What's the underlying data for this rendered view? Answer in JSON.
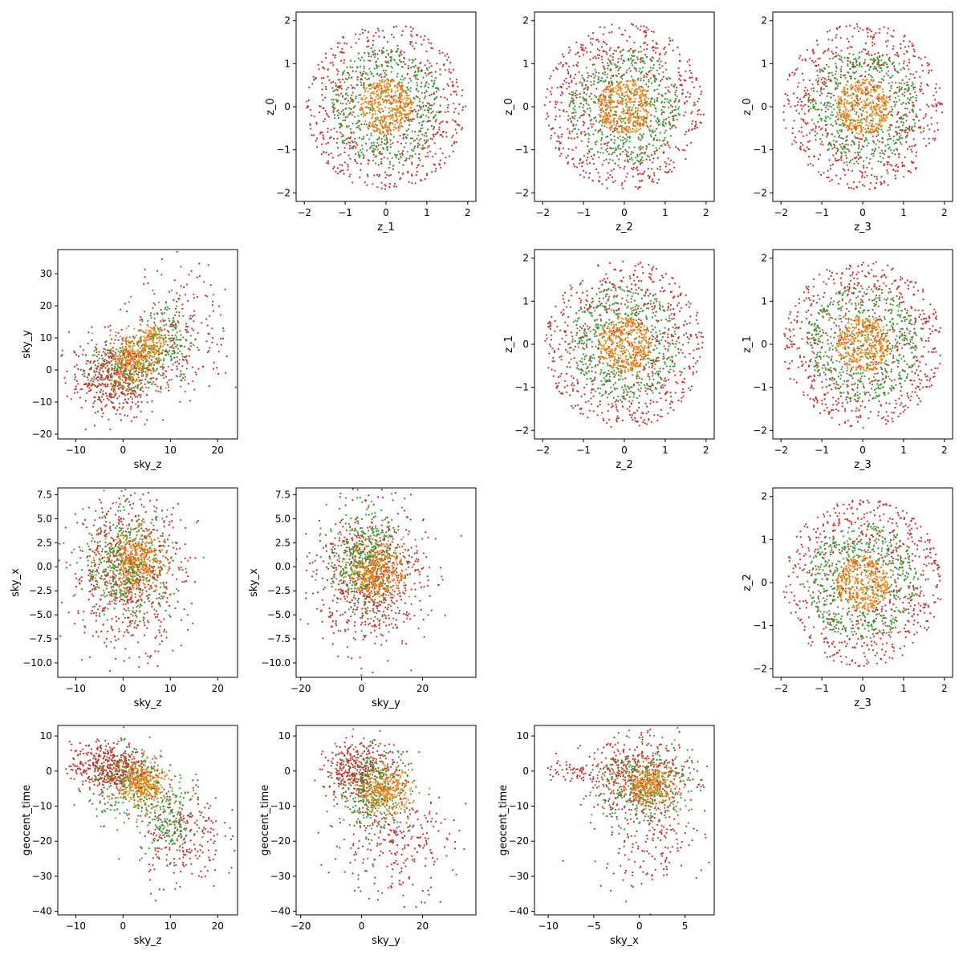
{
  "colors": {
    "series_1": "#1f77b4",
    "series_2": "#ff7f0e",
    "series_3": "#2ca02c",
    "series_4": "#d62728"
  },
  "chart_data": [
    {
      "type": "scatter",
      "row": 0,
      "col": 1,
      "xlabel": "z_1",
      "ylabel": "z_0",
      "xlim": [
        -2.2,
        2.2
      ],
      "ylim": [
        -2.2,
        2.2
      ],
      "xticks": [
        -2,
        -1,
        0,
        1,
        2
      ],
      "yticks": [
        -2,
        -1,
        0,
        1,
        2
      ],
      "clouds": [
        {
          "series": 4,
          "shape": "ring",
          "cx": 0,
          "cy": 0,
          "r_in": 0,
          "r_out": 1.95,
          "count": 700
        },
        {
          "series": 3,
          "shape": "ring",
          "cx": 0,
          "cy": 0,
          "r_in": 0,
          "r_out": 1.35,
          "count": 500
        },
        {
          "series": 2,
          "shape": "ring",
          "cx": 0,
          "cy": 0,
          "r_in": 0,
          "r_out": 0.65,
          "count": 350
        }
      ]
    },
    {
      "type": "scatter",
      "row": 0,
      "col": 2,
      "xlabel": "z_2",
      "ylabel": "z_0",
      "xlim": [
        -2.2,
        2.2
      ],
      "ylim": [
        -2.2,
        2.2
      ],
      "xticks": [
        -2,
        -1,
        0,
        1,
        2
      ],
      "yticks": [
        -2,
        -1,
        0,
        1,
        2
      ],
      "clouds": [
        {
          "series": 4,
          "shape": "ring",
          "cx": 0,
          "cy": 0,
          "r_in": 0,
          "r_out": 1.95,
          "count": 700
        },
        {
          "series": 3,
          "shape": "ring",
          "cx": 0,
          "cy": 0,
          "r_in": 0,
          "r_out": 1.35,
          "count": 500
        },
        {
          "series": 2,
          "shape": "ring",
          "cx": 0,
          "cy": 0,
          "r_in": 0,
          "r_out": 0.65,
          "count": 350
        }
      ]
    },
    {
      "type": "scatter",
      "row": 0,
      "col": 3,
      "xlabel": "z_3",
      "ylabel": "z_0",
      "xlim": [
        -2.2,
        2.2
      ],
      "ylim": [
        -2.2,
        2.2
      ],
      "xticks": [
        -2,
        -1,
        0,
        1,
        2
      ],
      "yticks": [
        -2,
        -1,
        0,
        1,
        2
      ],
      "clouds": [
        {
          "series": 4,
          "shape": "ring",
          "cx": 0,
          "cy": 0,
          "r_in": 0,
          "r_out": 1.95,
          "count": 700
        },
        {
          "series": 3,
          "shape": "ring",
          "cx": 0,
          "cy": 0,
          "r_in": 0,
          "r_out": 1.35,
          "count": 500
        },
        {
          "series": 2,
          "shape": "ring",
          "cx": 0,
          "cy": 0,
          "r_in": 0,
          "r_out": 0.65,
          "count": 350
        }
      ]
    },
    {
      "type": "scatter",
      "row": 1,
      "col": 0,
      "xlabel": "sky_z",
      "ylabel": "sky_y",
      "xlim": [
        -13.8,
        24.2
      ],
      "ylim": [
        -21.5,
        37.5
      ],
      "xticks": [
        -10,
        0,
        10,
        20
      ],
      "yticks": [
        -20,
        -10,
        0,
        10,
        20,
        30
      ],
      "clouds": [
        {
          "series": 4,
          "shape": "gauss",
          "cx": -2,
          "cy": -2,
          "sx": 4.5,
          "sy": 6,
          "count": 500
        },
        {
          "series": 4,
          "shape": "gauss",
          "cx": 12,
          "cy": 12,
          "sx": 5,
          "sy": 10,
          "count": 220
        },
        {
          "series": 3,
          "shape": "gauss",
          "cx": 1,
          "cy": 0,
          "sx": 4,
          "sy": 5,
          "count": 260
        },
        {
          "series": 3,
          "shape": "gauss",
          "cx": 9,
          "cy": 10,
          "sx": 3,
          "sy": 7,
          "count": 160
        },
        {
          "series": 2,
          "shape": "gauss",
          "cx": 2,
          "cy": 3,
          "sx": 2.5,
          "sy": 4,
          "count": 220
        },
        {
          "series": 2,
          "shape": "gauss",
          "cx": 6,
          "cy": 9,
          "sx": 1.5,
          "sy": 2.5,
          "count": 120
        }
      ]
    },
    {
      "type": "scatter",
      "row": 1,
      "col": 2,
      "xlabel": "z_2",
      "ylabel": "z_1",
      "xlim": [
        -2.2,
        2.2
      ],
      "ylim": [
        -2.2,
        2.2
      ],
      "xticks": [
        -2,
        -1,
        0,
        1,
        2
      ],
      "yticks": [
        -2,
        -1,
        0,
        1,
        2
      ],
      "clouds": [
        {
          "series": 4,
          "shape": "ring",
          "cx": 0,
          "cy": 0,
          "r_in": 0,
          "r_out": 1.95,
          "count": 700
        },
        {
          "series": 3,
          "shape": "ring",
          "cx": 0,
          "cy": 0,
          "r_in": 0,
          "r_out": 1.35,
          "count": 500
        },
        {
          "series": 2,
          "shape": "ring",
          "cx": 0,
          "cy": 0,
          "r_in": 0,
          "r_out": 0.65,
          "count": 350
        }
      ]
    },
    {
      "type": "scatter",
      "row": 1,
      "col": 3,
      "xlabel": "z_3",
      "ylabel": "z_1",
      "xlim": [
        -2.2,
        2.2
      ],
      "ylim": [
        -2.2,
        2.2
      ],
      "xticks": [
        -2,
        -1,
        0,
        1,
        2
      ],
      "yticks": [
        -2,
        -1,
        0,
        1,
        2
      ],
      "clouds": [
        {
          "series": 4,
          "shape": "ring",
          "cx": 0,
          "cy": 0,
          "r_in": 0,
          "r_out": 1.95,
          "count": 700
        },
        {
          "series": 3,
          "shape": "ring",
          "cx": 0,
          "cy": 0,
          "r_in": 0,
          "r_out": 1.35,
          "count": 500
        },
        {
          "series": 2,
          "shape": "ring",
          "cx": 0,
          "cy": 0,
          "r_in": 0,
          "r_out": 0.65,
          "count": 350
        }
      ]
    },
    {
      "type": "scatter",
      "row": 2,
      "col": 0,
      "xlabel": "sky_z",
      "ylabel": "sky_x",
      "xlim": [
        -13.8,
        24.2
      ],
      "ylim": [
        -11.5,
        8.2
      ],
      "xticks": [
        -10,
        0,
        10,
        20
      ],
      "yticks": [
        -10.0,
        -7.5,
        -5.0,
        -2.5,
        0.0,
        2.5,
        5.0,
        7.5
      ],
      "ytick_labels": [
        "−10.0",
        "−7.5",
        "−5.0",
        "−2.5",
        "0.0",
        "2.5",
        "5.0",
        "7.5"
      ],
      "clouds": [
        {
          "series": 4,
          "shape": "gauss",
          "cx": 1,
          "cy": -0.5,
          "sx": 6,
          "sy": 3.8,
          "count": 700
        },
        {
          "series": 3,
          "shape": "gauss",
          "cx": 1,
          "cy": 0,
          "sx": 4.5,
          "sy": 2.8,
          "count": 450
        },
        {
          "series": 2,
          "shape": "gauss",
          "cx": 3,
          "cy": 0.5,
          "sx": 3,
          "sy": 1.6,
          "count": 300
        }
      ]
    },
    {
      "type": "scatter",
      "row": 2,
      "col": 1,
      "xlabel": "sky_y",
      "ylabel": "sky_x",
      "xlim": [
        -21.5,
        37.5
      ],
      "ylim": [
        -11.5,
        8.2
      ],
      "xticks": [
        -20,
        0,
        20
      ],
      "yticks": [
        -10.0,
        -7.5,
        -5.0,
        -2.5,
        0.0,
        2.5,
        5.0,
        7.5
      ],
      "ytick_labels": [
        "−10.0",
        "−7.5",
        "−5.0",
        "−2.5",
        "0.0",
        "2.5",
        "5.0",
        "7.5"
      ],
      "clouds": [
        {
          "series": 4,
          "shape": "gauss",
          "cx": 3,
          "cy": -1,
          "sx": 9,
          "sy": 3.5,
          "count": 700
        },
        {
          "series": 3,
          "shape": "gauss",
          "cx": 1,
          "cy": 0.5,
          "sx": 6,
          "sy": 2.6,
          "count": 450
        },
        {
          "series": 2,
          "shape": "gauss",
          "cx": 5,
          "cy": -0.5,
          "sx": 4.5,
          "sy": 1.5,
          "count": 300
        }
      ]
    },
    {
      "type": "scatter",
      "row": 2,
      "col": 3,
      "xlabel": "z_3",
      "ylabel": "z_2",
      "xlim": [
        -2.2,
        2.2
      ],
      "ylim": [
        -2.2,
        2.2
      ],
      "xticks": [
        -2,
        -1,
        0,
        1,
        2
      ],
      "yticks": [
        -2,
        -1,
        0,
        1,
        2
      ],
      "clouds": [
        {
          "series": 4,
          "shape": "ring",
          "cx": 0,
          "cy": 0,
          "r_in": 0,
          "r_out": 1.95,
          "count": 700
        },
        {
          "series": 3,
          "shape": "ring",
          "cx": 0,
          "cy": 0,
          "r_in": 0,
          "r_out": 1.35,
          "count": 500
        },
        {
          "series": 2,
          "shape": "ring",
          "cx": 0,
          "cy": 0,
          "r_in": 0,
          "r_out": 0.65,
          "count": 350
        }
      ]
    },
    {
      "type": "scatter",
      "row": 3,
      "col": 0,
      "xlabel": "sky_z",
      "ylabel": "geocent_time",
      "xlim": [
        -13.8,
        24.2
      ],
      "ylim": [
        -41,
        13
      ],
      "xticks": [
        -10,
        0,
        10,
        20
      ],
      "yticks": [
        -40,
        -30,
        -20,
        -10,
        0,
        10
      ],
      "clouds": [
        {
          "series": 4,
          "shape": "gauss",
          "cx": -3,
          "cy": 1,
          "sx": 4,
          "sy": 3.5,
          "count": 450
        },
        {
          "series": 4,
          "shape": "gauss",
          "cx": 12,
          "cy": -18,
          "sx": 4.5,
          "sy": 8,
          "count": 250
        },
        {
          "series": 3,
          "shape": "gauss",
          "cx": 2,
          "cy": -4,
          "sx": 4.5,
          "sy": 5,
          "count": 300
        },
        {
          "series": 3,
          "shape": "gauss",
          "cx": 10,
          "cy": -15,
          "sx": 2.5,
          "sy": 5,
          "count": 150
        },
        {
          "series": 2,
          "shape": "gauss",
          "cx": 4,
          "cy": -4,
          "sx": 2.5,
          "sy": 3.5,
          "count": 280
        }
      ]
    },
    {
      "type": "scatter",
      "row": 3,
      "col": 1,
      "xlabel": "sky_y",
      "ylabel": "geocent_time",
      "xlim": [
        -21.5,
        37.5
      ],
      "ylim": [
        -41,
        13
      ],
      "xticks": [
        -20,
        0,
        20
      ],
      "yticks": [
        -40,
        -30,
        -20,
        -10,
        0,
        10
      ],
      "clouds": [
        {
          "series": 4,
          "shape": "gauss",
          "cx": 0,
          "cy": 0,
          "sx": 6,
          "sy": 4,
          "count": 400
        },
        {
          "series": 4,
          "shape": "gauss",
          "cx": 10,
          "cy": -20,
          "sx": 10,
          "sy": 8,
          "count": 280
        },
        {
          "series": 3,
          "shape": "gauss",
          "cx": 4,
          "cy": -5,
          "sx": 6,
          "sy": 6,
          "count": 350
        },
        {
          "series": 2,
          "shape": "gauss",
          "cx": 8,
          "cy": -6,
          "sx": 4,
          "sy": 3,
          "count": 250
        }
      ]
    },
    {
      "type": "scatter",
      "row": 3,
      "col": 2,
      "xlabel": "sky_x",
      "ylabel": "geocent_time",
      "xlim": [
        -11.5,
        8.2
      ],
      "ylim": [
        -41,
        13
      ],
      "xticks": [
        -10,
        -5,
        0,
        5
      ],
      "yticks": [
        -40,
        -30,
        -20,
        -10,
        0,
        10
      ],
      "clouds": [
        {
          "series": 4,
          "shape": "gauss",
          "cx": 0,
          "cy": -1,
          "sx": 3,
          "sy": 5,
          "count": 400
        },
        {
          "series": 4,
          "shape": "gauss",
          "cx": 1,
          "cy": -18,
          "sx": 3,
          "sy": 8,
          "count": 200
        },
        {
          "series": 4,
          "shape": "gauss",
          "cx": -7,
          "cy": 0,
          "sx": 2,
          "sy": 1.5,
          "count": 60
        },
        {
          "series": 3,
          "shape": "gauss",
          "cx": 0.5,
          "cy": -4,
          "sx": 2.5,
          "sy": 6,
          "count": 350
        },
        {
          "series": 2,
          "shape": "gauss",
          "cx": 1,
          "cy": -4,
          "sx": 1.5,
          "sy": 3,
          "count": 250
        }
      ]
    }
  ]
}
